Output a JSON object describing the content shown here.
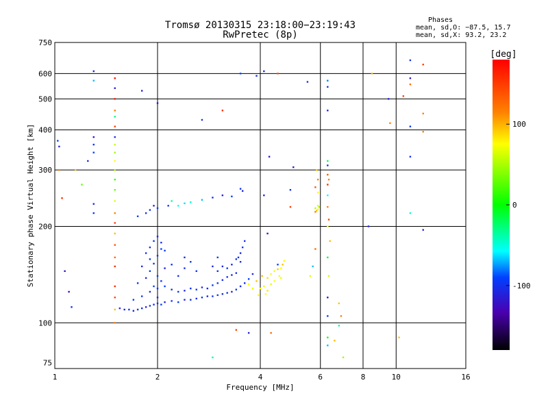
{
  "chart_data": {
    "type": "scatter",
    "title": "Tromsø 20130315 23:18:00−23:19:43",
    "subtitle": "RwPretec (8p)",
    "xlabel": "Frequency [MHz]",
    "ylabel": "Stationary phase Virtual Height [km]",
    "x_scale": "log",
    "y_scale": "log",
    "xlim": [
      1,
      16
    ],
    "ylim": [
      72,
      750
    ],
    "x_ticks": [
      1,
      2,
      4,
      6,
      8,
      10,
      16
    ],
    "y_ticks": [
      75,
      100,
      200,
      300,
      400,
      500,
      600,
      750
    ],
    "grid": true,
    "phases_box": {
      "title": "Phases",
      "line1": "mean, sd,O:  −87.5, 15.7",
      "line2": "mean, sd,X:  93.2, 23.2"
    },
    "colorbar": {
      "label": "[deg]",
      "range": [
        -180,
        180
      ],
      "ticks": [
        100,
        0,
        -100
      ]
    },
    "annotation": "Dense O-mode trace of phases near −100 deg between 1.55 and 4.1 MHz at 105–180 km; X-mode trace near +100 deg between 3.6 and 4.7 MHz at 115–145 km",
    "points": [
      [
        1.55,
        111,
        -105
      ],
      [
        1.6,
        110,
        -108
      ],
      [
        1.65,
        110,
        -100
      ],
      [
        1.7,
        109,
        -112
      ],
      [
        1.75,
        110,
        -95
      ],
      [
        1.8,
        111,
        -102
      ],
      [
        1.85,
        112,
        -110
      ],
      [
        1.9,
        113,
        -98
      ],
      [
        1.95,
        114,
        -105
      ],
      [
        2.0,
        115,
        -100
      ],
      [
        2.05,
        114,
        -92
      ],
      [
        2.1,
        116,
        -108
      ],
      [
        2.2,
        117,
        -100
      ],
      [
        2.3,
        116,
        -95
      ],
      [
        2.4,
        118,
        -110
      ],
      [
        2.5,
        118,
        -100
      ],
      [
        2.6,
        119,
        -104
      ],
      [
        2.7,
        120,
        -96
      ],
      [
        2.8,
        121,
        -112
      ],
      [
        2.9,
        121,
        -100
      ],
      [
        3.0,
        122,
        -94
      ],
      [
        3.1,
        123,
        -106
      ],
      [
        3.2,
        124,
        -100
      ],
      [
        3.3,
        125,
        -110
      ],
      [
        3.4,
        127,
        -98
      ],
      [
        3.5,
        130,
        -104
      ],
      [
        3.6,
        133,
        -100
      ],
      [
        3.7,
        137,
        -92
      ],
      [
        3.8,
        142,
        -108
      ],
      [
        1.7,
        118,
        -100
      ],
      [
        1.8,
        121,
        -95
      ],
      [
        1.9,
        125,
        -108
      ],
      [
        2.0,
        128,
        -100
      ],
      [
        2.1,
        130,
        -90
      ],
      [
        2.2,
        127,
        -104
      ],
      [
        2.3,
        125,
        -98
      ],
      [
        2.4,
        126,
        -110
      ],
      [
        2.5,
        128,
        -100
      ],
      [
        2.6,
        127,
        -96
      ],
      [
        2.7,
        129,
        -102
      ],
      [
        2.8,
        128,
        -108
      ],
      [
        2.9,
        131,
        -95
      ],
      [
        3.0,
        133,
        -100
      ],
      [
        3.1,
        136,
        -105
      ],
      [
        3.2,
        139,
        -98
      ],
      [
        3.3,
        141,
        -110
      ],
      [
        3.4,
        143,
        -100
      ],
      [
        1.75,
        133,
        -100
      ],
      [
        1.85,
        138,
        -110
      ],
      [
        1.9,
        145,
        -95
      ],
      [
        1.95,
        153,
        -104
      ],
      [
        2.0,
        162,
        -100
      ],
      [
        2.05,
        170,
        -90
      ],
      [
        1.85,
        165,
        -100
      ],
      [
        1.9,
        172,
        -106
      ],
      [
        1.95,
        180,
        -98
      ],
      [
        2.0,
        186,
        -110
      ],
      [
        2.05,
        178,
        -100
      ],
      [
        2.1,
        168,
        -96
      ],
      [
        1.8,
        150,
        -104
      ],
      [
        1.9,
        158,
        -100
      ],
      [
        2.0,
        140,
        -95
      ],
      [
        2.1,
        148,
        -108
      ],
      [
        2.05,
        135,
        -100
      ],
      [
        1.95,
        130,
        -92
      ],
      [
        2.3,
        140,
        -100
      ],
      [
        2.4,
        148,
        -104
      ],
      [
        2.5,
        155,
        -98
      ],
      [
        2.4,
        160,
        -110
      ],
      [
        2.2,
        152,
        -100
      ],
      [
        2.6,
        145,
        -96
      ],
      [
        3.0,
        145,
        -100
      ],
      [
        3.1,
        150,
        -106
      ],
      [
        3.2,
        148,
        -98
      ],
      [
        3.3,
        152,
        -104
      ],
      [
        3.4,
        158,
        -100
      ],
      [
        3.5,
        165,
        -110
      ],
      [
        3.5,
        155,
        -100
      ],
      [
        3.55,
        172,
        -96
      ],
      [
        3.6,
        180,
        -104
      ],
      [
        3.45,
        160,
        -100
      ],
      [
        3.0,
        160,
        -95
      ],
      [
        2.9,
        150,
        -108
      ],
      [
        1.9,
        225,
        -100
      ],
      [
        1.95,
        232,
        -110
      ],
      [
        2.0,
        228,
        -95
      ],
      [
        1.85,
        220,
        -104
      ],
      [
        2.15,
        232,
        -100
      ],
      [
        1.75,
        215,
        -92
      ],
      [
        2.3,
        232,
        -60
      ],
      [
        2.5,
        238,
        -50
      ],
      [
        2.7,
        242,
        -70
      ],
      [
        2.9,
        246,
        -100
      ],
      [
        3.1,
        250,
        -110
      ],
      [
        3.3,
        248,
        -90
      ],
      [
        3.5,
        262,
        -100
      ],
      [
        3.55,
        258,
        -108
      ],
      [
        2.2,
        240,
        -40
      ],
      [
        2.4,
        236,
        -65
      ],
      [
        3.7,
        132,
        100
      ],
      [
        3.8,
        128,
        95
      ],
      [
        3.9,
        135,
        110
      ],
      [
        4.0,
        128,
        100
      ],
      [
        4.1,
        130,
        90
      ],
      [
        4.2,
        138,
        105
      ],
      [
        4.3,
        142,
        100
      ],
      [
        4.4,
        145,
        95
      ],
      [
        4.5,
        147,
        108
      ],
      [
        4.6,
        148,
        100
      ],
      [
        4.65,
        152,
        110
      ],
      [
        4.55,
        140,
        96
      ],
      [
        4.4,
        135,
        100
      ],
      [
        4.3,
        132,
        92
      ],
      [
        4.2,
        126,
        104
      ],
      [
        4.15,
        123,
        100
      ],
      [
        3.95,
        122,
        98
      ],
      [
        4.05,
        140,
        110
      ],
      [
        4.7,
        156,
        100
      ],
      [
        4.6,
        138,
        94
      ],
      [
        1.5,
        150,
        160
      ],
      [
        1.5,
        160,
        130
      ],
      [
        1.5,
        175,
        140
      ],
      [
        1.5,
        190,
        110
      ],
      [
        1.5,
        205,
        150
      ],
      [
        1.5,
        220,
        120
      ],
      [
        1.5,
        240,
        90
      ],
      [
        1.5,
        260,
        40
      ],
      [
        1.5,
        280,
        20
      ],
      [
        1.5,
        300,
        60
      ],
      [
        1.5,
        320,
        100
      ],
      [
        1.5,
        340,
        60
      ],
      [
        1.5,
        360,
        80
      ],
      [
        1.5,
        380,
        -100
      ],
      [
        1.5,
        410,
        150
      ],
      [
        1.5,
        440,
        -30
      ],
      [
        1.5,
        460,
        120
      ],
      [
        1.5,
        500,
        170
      ],
      [
        1.5,
        540,
        -110
      ],
      [
        1.5,
        580,
        170
      ],
      [
        1.5,
        130,
        160
      ],
      [
        1.5,
        120,
        150
      ],
      [
        1.5,
        110,
        110
      ],
      [
        1.5,
        100,
        120
      ],
      [
        6.3,
        320,
        -20
      ],
      [
        6.3,
        310,
        -100
      ],
      [
        6.3,
        290,
        140
      ],
      [
        6.35,
        280,
        120
      ],
      [
        6.3,
        270,
        160
      ],
      [
        6.3,
        250,
        -60
      ],
      [
        6.3,
        230,
        120
      ],
      [
        6.35,
        210,
        150
      ],
      [
        6.3,
        200,
        100
      ],
      [
        6.4,
        180,
        110
      ],
      [
        6.3,
        160,
        -10
      ],
      [
        6.35,
        140,
        80
      ],
      [
        6.3,
        120,
        -120
      ],
      [
        6.3,
        105,
        -90
      ],
      [
        6.3,
        90,
        10
      ],
      [
        6.3,
        85,
        -70
      ],
      [
        5.8,
        228,
        70
      ],
      [
        5.9,
        226,
        100
      ],
      [
        5.85,
        224,
        110
      ],
      [
        5.95,
        230,
        60
      ],
      [
        5.8,
        222,
        120
      ],
      [
        5.9,
        232,
        90
      ],
      [
        5.9,
        280,
        120
      ],
      [
        5.85,
        300,
        110
      ],
      [
        5.8,
        265,
        140
      ],
      [
        5.9,
        255,
        100
      ],
      [
        1.3,
        610,
        -110
      ],
      [
        1.3,
        570,
        -70
      ],
      [
        1.3,
        380,
        -120
      ],
      [
        1.3,
        360,
        -100
      ],
      [
        1.3,
        340,
        -90
      ],
      [
        1.3,
        235,
        -110
      ],
      [
        1.3,
        220,
        -100
      ],
      [
        1.03,
        300,
        120
      ],
      [
        1.05,
        245,
        160
      ],
      [
        1.02,
        370,
        -90
      ],
      [
        1.03,
        355,
        -110
      ],
      [
        1.07,
        145,
        -120
      ],
      [
        1.1,
        125,
        -130
      ],
      [
        1.12,
        112,
        -100
      ],
      [
        1.15,
        300,
        110
      ],
      [
        1.2,
        270,
        40
      ],
      [
        1.25,
        320,
        -110
      ],
      [
        1.8,
        530,
        -110
      ],
      [
        2.0,
        485,
        -120
      ],
      [
        2.7,
        430,
        -100
      ],
      [
        3.1,
        460,
        160
      ],
      [
        3.5,
        600,
        -90
      ],
      [
        3.9,
        590,
        -100
      ],
      [
        4.1,
        610,
        -110
      ],
      [
        4.5,
        600,
        140
      ],
      [
        5.5,
        565,
        -100
      ],
      [
        6.3,
        570,
        -80
      ],
      [
        6.3,
        545,
        -100
      ],
      [
        6.3,
        460,
        -110
      ],
      [
        8.5,
        600,
        110
      ],
      [
        9.5,
        500,
        -110
      ],
      [
        9.6,
        420,
        120
      ],
      [
        10.5,
        510,
        150
      ],
      [
        11.0,
        660,
        -100
      ],
      [
        11.0,
        580,
        -120
      ],
      [
        11.0,
        555,
        130
      ],
      [
        11.0,
        410,
        -100
      ],
      [
        11.0,
        330,
        -100
      ],
      [
        12.0,
        640,
        150
      ],
      [
        12.0,
        450,
        120
      ],
      [
        12.0,
        395,
        120
      ],
      [
        12.0,
        195,
        -110
      ],
      [
        11.0,
        220,
        -50
      ],
      [
        8.3,
        200,
        -110
      ],
      [
        10.2,
        90,
        110
      ],
      [
        7.0,
        78,
        60
      ],
      [
        6.8,
        115,
        110
      ],
      [
        6.8,
        98,
        -40
      ],
      [
        6.6,
        88,
        110
      ],
      [
        6.9,
        105,
        120
      ],
      [
        5.8,
        170,
        130
      ],
      [
        5.7,
        150,
        -70
      ],
      [
        5.6,
        140,
        90
      ],
      [
        2.9,
        78,
        -40
      ],
      [
        3.7,
        93,
        -110
      ],
      [
        4.3,
        93,
        130
      ],
      [
        3.4,
        95,
        150
      ],
      [
        2.0,
        120,
        -110
      ],
      [
        4.2,
        190,
        -120
      ],
      [
        4.5,
        152,
        -90
      ],
      [
        4.9,
        230,
        150
      ],
      [
        4.1,
        250,
        -110
      ],
      [
        4.9,
        260,
        -100
      ],
      [
        4.25,
        330,
        -120
      ],
      [
        5.0,
        306,
        -120
      ]
    ]
  }
}
